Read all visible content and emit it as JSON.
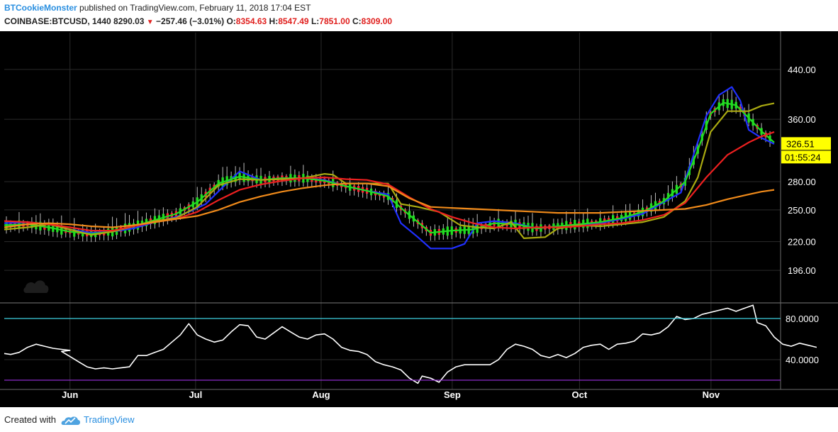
{
  "header": {
    "author": "BTCookieMonster",
    "published_text": "published on TradingView.com, February 11, 2018 17:04 EST",
    "symbol": "COINBASE:BTCUSD, 1440",
    "last": "8290.03",
    "change_symbol": "▼",
    "change": "−257.46 (−3.01%)",
    "o_label": "O:",
    "o_value": "8354.63",
    "h_label": "H:",
    "h_value": "8547.49",
    "l_label": "L:",
    "l_value": "7851.00",
    "c_label": "C:",
    "c_value": "8309.00"
  },
  "colors": {
    "background": "#000000",
    "grid": "#2b2b2b",
    "candle_up": "#22dd22",
    "candle_down": "#ff2233",
    "candle_doji": "#ff66cc",
    "rsi_line": "#ffffff",
    "rsi_upper": "#3ecfe0",
    "rsi_lower": "#9b30e0",
    "price_tag": "#ffff00"
  },
  "chart_data": {
    "type": "line",
    "xaxis": {
      "labels": [
        "Jun",
        "Jul",
        "Aug",
        "Sep",
        "Oct",
        "Nov"
      ],
      "positions": [
        0,
        29.6,
        59.2,
        90.1,
        120.1,
        151.1
      ],
      "domain": [
        -15.5,
        167.5
      ]
    },
    "price_axis": {
      "scale": "log",
      "ticks": [
        "440.00",
        "360.00",
        "280.00",
        "250.00",
        "220.00",
        "196.00"
      ],
      "tick_values": [
        440,
        360,
        280,
        250,
        220,
        196
      ],
      "ylim": [
        172.9,
        510.3
      ],
      "last_price_label": "326.51",
      "last_price": 326.51,
      "countdown_label": "01:55:24"
    },
    "oscillator_axis": {
      "ticks": [
        "80.0000",
        "40.0000"
      ],
      "tick_values": [
        80,
        40
      ],
      "ylim": [
        11,
        94.5
      ],
      "upper_band": 80,
      "lower_band": 20
    },
    "series": [
      {
        "color": "#2030ff",
        "points": [
          [
            -15.5,
            237
          ],
          [
            -10,
            238
          ],
          [
            -5,
            236
          ],
          [
            0,
            231
          ],
          [
            5,
            228
          ],
          [
            10,
            229
          ],
          [
            15,
            232
          ],
          [
            20,
            238
          ],
          [
            25,
            243
          ],
          [
            28,
            248
          ],
          [
            32,
            256
          ],
          [
            36,
            274
          ],
          [
            40,
            292
          ],
          [
            45,
            282
          ],
          [
            50,
            284
          ],
          [
            55,
            284
          ],
          [
            60,
            282
          ],
          [
            65,
            275
          ],
          [
            70,
            270
          ],
          [
            75,
            266
          ],
          [
            78,
            237
          ],
          [
            82,
            224
          ],
          [
            85,
            214
          ],
          [
            90,
            214
          ],
          [
            93,
            218
          ],
          [
            96,
            237
          ],
          [
            100,
            239
          ],
          [
            105,
            237
          ],
          [
            110,
            232
          ],
          [
            115,
            234
          ],
          [
            120,
            235
          ],
          [
            125,
            237
          ],
          [
            130,
            241
          ],
          [
            135,
            246
          ],
          [
            140,
            258
          ],
          [
            144,
            268
          ],
          [
            147,
            312
          ],
          [
            150,
            365
          ],
          [
            153,
            397
          ],
          [
            156,
            410
          ],
          [
            158,
            388
          ],
          [
            160,
            345
          ],
          [
            163,
            334
          ],
          [
            166,
            326
          ]
        ]
      },
      {
        "color": "#22dd22",
        "points": [
          [
            -15.5,
            235
          ],
          [
            -10,
            236
          ],
          [
            -5,
            233
          ],
          [
            0,
            229
          ],
          [
            5,
            227
          ],
          [
            10,
            229
          ],
          [
            15,
            234
          ],
          [
            20,
            240
          ],
          [
            25,
            246
          ],
          [
            30,
            258
          ],
          [
            35,
            278
          ],
          [
            40,
            286
          ],
          [
            45,
            282
          ],
          [
            50,
            284
          ],
          [
            55,
            284
          ],
          [
            60,
            281
          ],
          [
            65,
            275
          ],
          [
            70,
            270
          ],
          [
            75,
            264
          ],
          [
            78,
            252
          ],
          [
            82,
            238
          ],
          [
            85,
            228
          ],
          [
            90,
            230
          ],
          [
            95,
            231
          ],
          [
            100,
            237
          ],
          [
            105,
            236
          ],
          [
            110,
            232
          ],
          [
            115,
            234
          ],
          [
            120,
            236
          ],
          [
            125,
            238
          ],
          [
            130,
            242
          ],
          [
            135,
            248
          ],
          [
            140,
            259
          ],
          [
            145,
            280
          ],
          [
            148,
            318
          ],
          [
            151,
            368
          ],
          [
            154,
            385
          ],
          [
            157,
            381
          ],
          [
            160,
            362
          ],
          [
            163,
            343
          ],
          [
            166,
            328
          ]
        ]
      },
      {
        "color": "#aaaa11",
        "points": [
          [
            -15.5,
            231
          ],
          [
            -10,
            233
          ],
          [
            -5,
            236
          ],
          [
            0,
            231
          ],
          [
            5,
            226
          ],
          [
            10,
            229
          ],
          [
            15,
            234
          ],
          [
            20,
            239
          ],
          [
            25,
            242
          ],
          [
            30,
            253
          ],
          [
            35,
            276
          ],
          [
            40,
            283
          ],
          [
            45,
            282
          ],
          [
            50,
            283
          ],
          [
            55,
            284
          ],
          [
            60,
            289
          ],
          [
            62,
            288
          ],
          [
            65,
            278
          ],
          [
            70,
            278
          ],
          [
            75,
            278
          ],
          [
            78,
            256
          ],
          [
            82,
            253
          ],
          [
            87,
            248
          ],
          [
            92,
            235
          ],
          [
            96,
            233
          ],
          [
            100,
            232
          ],
          [
            104,
            238
          ],
          [
            107,
            223
          ],
          [
            112,
            224
          ],
          [
            115,
            232
          ],
          [
            120,
            235
          ],
          [
            125,
            234
          ],
          [
            130,
            236
          ],
          [
            135,
            238
          ],
          [
            140,
            243
          ],
          [
            145,
            259
          ],
          [
            148,
            285
          ],
          [
            151,
            342
          ],
          [
            155,
            372
          ],
          [
            160,
            372
          ],
          [
            163,
            380
          ],
          [
            166,
            384
          ]
        ]
      },
      {
        "color": "#ee2020",
        "points": [
          [
            -15.5,
            239
          ],
          [
            -10,
            238
          ],
          [
            -5,
            236
          ],
          [
            0,
            233
          ],
          [
            5,
            230
          ],
          [
            10,
            230
          ],
          [
            15,
            234
          ],
          [
            20,
            238
          ],
          [
            25,
            241
          ],
          [
            30,
            248
          ],
          [
            35,
            260
          ],
          [
            40,
            271
          ],
          [
            45,
            277
          ],
          [
            50,
            281
          ],
          [
            55,
            284
          ],
          [
            60,
            285
          ],
          [
            65,
            283
          ],
          [
            70,
            282
          ],
          [
            75,
            277
          ],
          [
            80,
            263
          ],
          [
            85,
            251
          ],
          [
            90,
            243
          ],
          [
            95,
            237
          ],
          [
            100,
            233
          ],
          [
            105,
            232
          ],
          [
            110,
            233
          ],
          [
            115,
            233
          ],
          [
            120,
            234
          ],
          [
            125,
            236
          ],
          [
            130,
            237
          ],
          [
            135,
            240
          ],
          [
            140,
            245
          ],
          [
            145,
            257
          ],
          [
            150,
            285
          ],
          [
            155,
            312
          ],
          [
            160,
            328
          ],
          [
            163,
            336
          ],
          [
            166,
            342
          ]
        ]
      },
      {
        "color": "#f08a1a",
        "points": [
          [
            -15.5,
            233
          ],
          [
            -10,
            236
          ],
          [
            -5,
            237
          ],
          [
            0,
            236
          ],
          [
            5,
            234
          ],
          [
            10,
            233
          ],
          [
            15,
            235
          ],
          [
            20,
            238
          ],
          [
            25,
            241
          ],
          [
            30,
            244
          ],
          [
            35,
            250
          ],
          [
            40,
            258
          ],
          [
            45,
            264
          ],
          [
            50,
            269
          ],
          [
            55,
            273
          ],
          [
            60,
            276
          ],
          [
            65,
            278
          ],
          [
            70,
            278
          ],
          [
            75,
            275
          ],
          [
            80,
            262
          ],
          [
            85,
            253
          ],
          [
            90,
            252
          ],
          [
            95,
            251
          ],
          [
            100,
            250
          ],
          [
            105,
            249
          ],
          [
            110,
            248
          ],
          [
            115,
            247
          ],
          [
            120,
            247
          ],
          [
            125,
            247
          ],
          [
            130,
            248
          ],
          [
            135,
            249
          ],
          [
            140,
            250
          ],
          [
            145,
            251
          ],
          [
            150,
            255
          ],
          [
            155,
            261
          ],
          [
            160,
            266
          ],
          [
            163,
            269
          ],
          [
            166,
            271
          ]
        ]
      },
      {
        "color": "#ffffff",
        "points": [
          [
            -15.5,
            46
          ],
          [
            -14,
            45
          ],
          [
            -12,
            47
          ],
          [
            -10,
            52
          ],
          [
            -8,
            55
          ],
          [
            -6,
            53
          ],
          [
            -4,
            51
          ],
          [
            -2,
            50
          ],
          [
            0,
            49
          ],
          [
            -2,
            48
          ],
          [
            0,
            43
          ],
          [
            2,
            38
          ],
          [
            4,
            33
          ],
          [
            6,
            31
          ],
          [
            8,
            32
          ],
          [
            10,
            31
          ],
          [
            12,
            32
          ],
          [
            14,
            33
          ],
          [
            16,
            44
          ],
          [
            18,
            44
          ],
          [
            20,
            47
          ],
          [
            22,
            50
          ],
          [
            24,
            57
          ],
          [
            26,
            64
          ],
          [
            28,
            75
          ],
          [
            30,
            64
          ],
          [
            32,
            60
          ],
          [
            34,
            57
          ],
          [
            36,
            59
          ],
          [
            38,
            67
          ],
          [
            40,
            74
          ],
          [
            42,
            73
          ],
          [
            44,
            62
          ],
          [
            46,
            60
          ],
          [
            48,
            66
          ],
          [
            50,
            72
          ],
          [
            52,
            67
          ],
          [
            54,
            62
          ],
          [
            56,
            60
          ],
          [
            58,
            64
          ],
          [
            60,
            65
          ],
          [
            62,
            60
          ],
          [
            64,
            52
          ],
          [
            66,
            49
          ],
          [
            68,
            48
          ],
          [
            70,
            45
          ],
          [
            72,
            38
          ],
          [
            74,
            35
          ],
          [
            76,
            33
          ],
          [
            78,
            30
          ],
          [
            80,
            22
          ],
          [
            82,
            17
          ],
          [
            83,
            24
          ],
          [
            85,
            22
          ],
          [
            87,
            18
          ],
          [
            89,
            28
          ],
          [
            91,
            33
          ],
          [
            93,
            35
          ],
          [
            95,
            35
          ],
          [
            97,
            35
          ],
          [
            99,
            35
          ],
          [
            101,
            40
          ],
          [
            103,
            50
          ],
          [
            105,
            55
          ],
          [
            107,
            53
          ],
          [
            109,
            50
          ],
          [
            111,
            44
          ],
          [
            113,
            42
          ],
          [
            115,
            45
          ],
          [
            117,
            42
          ],
          [
            119,
            46
          ],
          [
            121,
            52
          ],
          [
            123,
            54
          ],
          [
            125,
            55
          ],
          [
            127,
            50
          ],
          [
            129,
            55
          ],
          [
            131,
            56
          ],
          [
            133,
            58
          ],
          [
            135,
            65
          ],
          [
            137,
            64
          ],
          [
            139,
            66
          ],
          [
            141,
            72
          ],
          [
            143,
            82
          ],
          [
            145,
            79
          ],
          [
            147,
            80
          ],
          [
            149,
            84
          ],
          [
            151,
            86
          ],
          [
            153,
            88
          ],
          [
            155,
            90
          ],
          [
            157,
            87
          ],
          [
            159,
            90
          ],
          [
            161,
            93
          ],
          [
            162,
            76
          ],
          [
            164,
            73
          ],
          [
            166,
            62
          ],
          [
            168,
            55
          ],
          [
            170,
            53
          ],
          [
            172,
            56
          ],
          [
            174,
            54
          ],
          [
            176,
            52
          ]
        ]
      }
    ]
  },
  "watermark_logo": "tradingview-logo",
  "footer": {
    "created_with": "Created with",
    "brand": "TradingView"
  }
}
